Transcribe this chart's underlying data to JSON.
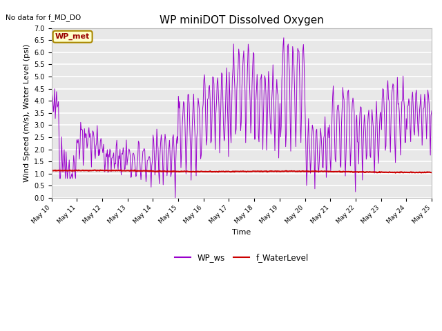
{
  "title": "WP miniDOT Dissolved Oxygen",
  "top_left_text": "No data for f_MD_DO",
  "ylabel": "Wind Speed (m/s), Water Level (psi)",
  "xlabel": "Time",
  "ylim": [
    0.0,
    7.0
  ],
  "yticks": [
    0.0,
    0.5,
    1.0,
    1.5,
    2.0,
    2.5,
    3.0,
    3.5,
    4.0,
    4.5,
    5.0,
    5.5,
    6.0,
    6.5,
    7.0
  ],
  "xtick_labels": [
    "May 10",
    "May 11",
    "May 12",
    "May 13",
    "May 14",
    "May 15",
    "May 16",
    "May 17",
    "May 18",
    "May 19",
    "May 20",
    "May 21",
    "May 22",
    "May 23",
    "May 24",
    "May 25"
  ],
  "wp_ws_color": "#9900cc",
  "f_wl_color": "#cc0000",
  "legend_label_ws": "WP_ws",
  "legend_label_wl": "f_WaterLevel",
  "inset_label": "WP_met",
  "inset_bg": "#ffffcc",
  "inset_border": "#aa8800",
  "inset_text_color": "#990000",
  "plot_bg_color": "#e8e8e8",
  "grid_color": "#ffffff",
  "fig_width": 6.4,
  "fig_height": 4.8,
  "dpi": 100
}
